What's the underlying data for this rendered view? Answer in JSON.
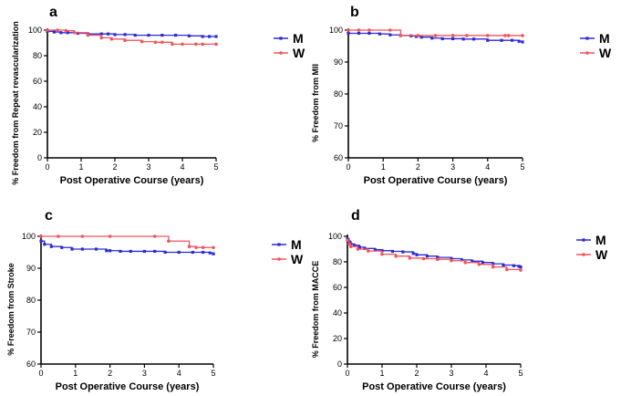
{
  "chart_data": [
    {
      "type": "line",
      "panel": "a",
      "xlabel": "Post Operative Course (years)",
      "ylabel": "% Freedom from Repeat revascularization",
      "xlim": [
        0,
        5
      ],
      "ylim": [
        0,
        100
      ],
      "xticks": [
        "0",
        "1",
        "2",
        "3",
        "4",
        "5"
      ],
      "yticks": [
        "0",
        "20",
        "40",
        "60",
        "80",
        "100"
      ],
      "legend_position": "right",
      "series": [
        {
          "name": "M",
          "color": "#2b2bd6",
          "marker": "square",
          "x": [
            0,
            0.2,
            0.4,
            0.6,
            0.9,
            1.2,
            1.6,
            1.8,
            2.0,
            2.3,
            2.6,
            3.0,
            3.4,
            3.8,
            4.2,
            4.6,
            4.8,
            5.0
          ],
          "y": [
            99,
            98.5,
            98,
            98,
            97.5,
            97,
            97,
            97,
            96.5,
            96.5,
            96,
            96,
            96,
            96,
            95.5,
            95,
            95,
            95
          ]
        },
        {
          "name": "W",
          "color": "#f2545b",
          "marker": "circle",
          "x": [
            0,
            0.3,
            0.55,
            0.8,
            1.2,
            1.6,
            1.9,
            2.3,
            2.8,
            3.2,
            3.4,
            3.7,
            4.0,
            4.4,
            4.6,
            5.0
          ],
          "y": [
            100,
            100,
            99.5,
            98,
            96,
            94,
            93,
            92,
            91,
            90.5,
            90.5,
            89,
            89,
            89,
            89,
            89
          ]
        }
      ]
    },
    {
      "type": "line",
      "panel": "b",
      "xlabel": "Post Operative Course (years)",
      "ylabel": "% Freedom from MII",
      "xlim": [
        0,
        5
      ],
      "ylim": [
        60,
        100
      ],
      "xticks": [
        "0",
        "1",
        "2",
        "3",
        "4",
        "5"
      ],
      "yticks": [
        "60",
        "70",
        "80",
        "90",
        "100"
      ],
      "legend_position": "right",
      "series": [
        {
          "name": "M",
          "color": "#2b2bd6",
          "marker": "square",
          "x": [
            0,
            0.3,
            0.6,
            0.9,
            1.2,
            1.5,
            1.8,
            1.95,
            2.1,
            2.4,
            2.7,
            3.0,
            3.3,
            3.6,
            4.0,
            4.4,
            4.7,
            4.9,
            5.0
          ],
          "y": [
            99,
            99,
            99,
            98.8,
            98.5,
            98.3,
            98.2,
            98,
            97.8,
            97.5,
            97.3,
            97.3,
            97.2,
            97.2,
            96.8,
            96.8,
            96.8,
            96.5,
            96.3
          ]
        },
        {
          "name": "W",
          "color": "#f2545b",
          "marker": "circle",
          "x": [
            0,
            0.3,
            0.6,
            1.2,
            1.5,
            2.0,
            2.5,
            3.0,
            3.4,
            4.0,
            4.5,
            4.6,
            5.0
          ],
          "y": [
            100,
            100,
            100,
            100,
            98.3,
            98.3,
            98.3,
            98.3,
            98.3,
            98.3,
            98.3,
            98.3,
            98.3
          ]
        }
      ]
    },
    {
      "type": "line",
      "panel": "c",
      "xlabel": "Post Operative Course (years)",
      "ylabel": "% Freedom from Stroke",
      "xlim": [
        0,
        5
      ],
      "ylim": [
        60,
        100
      ],
      "xticks": [
        "0",
        "1",
        "2",
        "3",
        "4",
        "5"
      ],
      "yticks": [
        "60",
        "70",
        "80",
        "90",
        "100"
      ],
      "legend_position": "right",
      "series": [
        {
          "name": "M",
          "color": "#2b2bd6",
          "marker": "square",
          "x": [
            0,
            0.1,
            0.3,
            0.6,
            0.9,
            1.2,
            1.6,
            1.9,
            2.0,
            2.3,
            2.6,
            3.0,
            3.3,
            3.6,
            4.0,
            4.4,
            4.7,
            4.9,
            5.0
          ],
          "y": [
            98.5,
            97.5,
            96.8,
            96.5,
            96,
            96,
            96,
            95.5,
            95.5,
            95.3,
            95.3,
            95.3,
            95.3,
            95,
            95,
            95,
            95,
            94.8,
            94.5
          ]
        },
        {
          "name": "W",
          "color": "#f2545b",
          "marker": "circle",
          "x": [
            0,
            0.5,
            1.2,
            2.0,
            3.3,
            3.7,
            4.3,
            4.5,
            4.7,
            5.0
          ],
          "y": [
            100,
            100,
            100,
            100,
            100,
            98.5,
            96.8,
            96.5,
            96.5,
            96.5
          ]
        }
      ]
    },
    {
      "type": "line",
      "panel": "d",
      "xlabel": "Post Operative Course (years)",
      "ylabel": "% Freedom from MACCE",
      "xlim": [
        0,
        5
      ],
      "ylim": [
        0,
        100
      ],
      "xticks": [
        "0",
        "1",
        "2",
        "3",
        "4",
        "5"
      ],
      "yticks": [
        "0",
        "20",
        "40",
        "60",
        "80",
        "100"
      ],
      "legend_position": "right",
      "series": [
        {
          "name": "M",
          "color": "#2b2bd6",
          "marker": "square",
          "x": [
            0,
            0.05,
            0.1,
            0.2,
            0.35,
            0.5,
            0.8,
            1.0,
            1.3,
            1.6,
            1.9,
            2.0,
            2.3,
            2.6,
            3.0,
            3.3,
            3.6,
            3.9,
            4.2,
            4.5,
            4.8,
            4.95,
            5.0
          ],
          "y": [
            98,
            96,
            94,
            93,
            91.5,
            90.5,
            89.5,
            88.8,
            88.2,
            87.8,
            86.5,
            85.5,
            84.5,
            83.5,
            82.5,
            81.5,
            80.5,
            79.5,
            78.5,
            77.5,
            77,
            76.5,
            76
          ]
        },
        {
          "name": "W",
          "color": "#f2545b",
          "marker": "circle",
          "x": [
            0,
            0.05,
            0.1,
            0.3,
            0.6,
            1.0,
            1.4,
            1.8,
            2.2,
            2.6,
            3.0,
            3.4,
            3.8,
            4.2,
            4.6,
            5.0
          ],
          "y": [
            97,
            94,
            92,
            90,
            88.5,
            86,
            84.5,
            83,
            82.5,
            82,
            81,
            79.5,
            78,
            76,
            74,
            73.5
          ]
        }
      ]
    }
  ]
}
